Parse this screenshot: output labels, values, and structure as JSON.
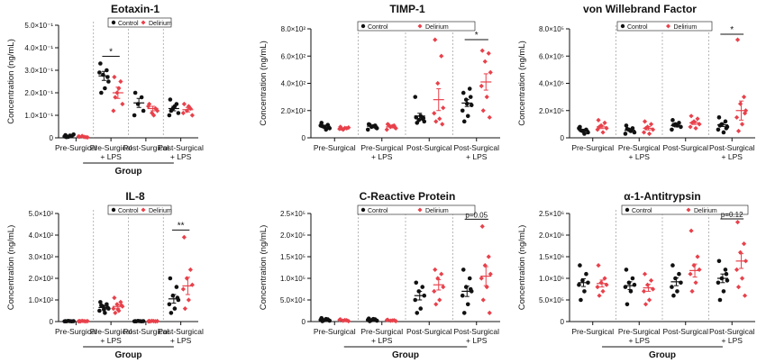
{
  "colors": {
    "control": "#111111",
    "delirium": "#e8414b",
    "grid": "#9a9a9a"
  },
  "chart_data": [
    {
      "type": "scatter",
      "title": "Eotaxin-1",
      "ylabel": "Concentration (ng/mL)",
      "xlabel": "Group",
      "ylim": [
        0,
        0.5
      ],
      "yticks": [
        0,
        0.1,
        0.2,
        0.3,
        0.4,
        0.5
      ],
      "ytick_labels": [
        "0",
        "1.0×10⁻¹",
        "2.0×10⁻¹",
        "3.0×10⁻¹",
        "4.0×10⁻¹",
        "5.0×10⁻¹"
      ],
      "categories": [
        "Pre-Surgical",
        "Pre-Surgical\n+ LPS",
        "Post-Surgical",
        "Post-Surgical\n+ LPS"
      ],
      "legend": [
        "Control",
        "Delirium"
      ],
      "legend_position": "top-right",
      "series": [
        {
          "name": "Control",
          "points": [
            [
              0.012,
              0.008,
              0.004,
              0.015,
              0.006,
              0.01,
              0.003
            ],
            [
              0.33,
              0.3,
              0.28,
              0.25,
              0.29,
              0.22,
              0.2,
              0.27
            ],
            [
              0.2,
              0.18,
              0.15,
              0.12,
              0.1
            ],
            [
              0.17,
              0.15,
              0.13,
              0.11,
              0.1,
              0.14,
              0.12
            ]
          ],
          "mean": [
            0.008,
            0.275,
            0.155,
            0.13
          ],
          "sem": [
            0.003,
            0.02,
            0.02,
            0.01
          ]
        },
        {
          "name": "Delirium",
          "points": [
            [
              0.005,
              0.003,
              0.008,
              0.002,
              0.006,
              0.004
            ],
            [
              0.27,
              0.25,
              0.2,
              0.15,
              0.12,
              0.22,
              0.18
            ],
            [
              0.15,
              0.13,
              0.11,
              0.12,
              0.14,
              0.1
            ],
            [
              0.15,
              0.13,
              0.12,
              0.1,
              0.11,
              0.14
            ]
          ],
          "mean": [
            0.005,
            0.2,
            0.13,
            0.125
          ],
          "sem": [
            0.002,
            0.025,
            0.01,
            0.01
          ]
        }
      ],
      "annotations": [
        {
          "group": 1,
          "text": "*"
        }
      ]
    },
    {
      "type": "scatter",
      "title": "TIMP-1",
      "ylabel": "Concentration (ng/mL)",
      "xlabel": "",
      "ylim": [
        0,
        800
      ],
      "yticks": [
        0,
        200,
        400,
        600,
        800
      ],
      "ytick_labels": [
        "0",
        "2.0×10²",
        "4.0×10²",
        "6.0×10²",
        "8.0×10²"
      ],
      "categories": [
        "Pre-Surgical",
        "Pre-Surgical\n+ LPS",
        "Post-Surgical",
        "Post-Surgical\n+ LPS"
      ],
      "legend": [
        "Control",
        "Delirium"
      ],
      "legend_position": "top-right",
      "series": [
        {
          "name": "Control",
          "points": [
            [
              110,
              95,
              80,
              70,
              90,
              60,
              85,
              75
            ],
            [
              100,
              90,
              80,
              70,
              60,
              85,
              95,
              75
            ],
            [
              150,
              140,
              130,
              120,
              300,
              160,
              110,
              145
            ],
            [
              330,
              360,
              280,
              240,
              200,
              160,
              120,
              300,
              250
            ]
          ],
          "mean": [
            85,
            85,
            160,
            255
          ],
          "sem": [
            8,
            6,
            20,
            25
          ]
        },
        {
          "name": "Delirium",
          "points": [
            [
              80,
              70,
              60,
              75,
              65,
              72,
              68
            ],
            [
              100,
              90,
              80,
              70,
              60,
              85,
              95,
              75
            ],
            [
              720,
              600,
              400,
              220,
              180,
              140,
              120,
              100
            ],
            [
              640,
              620,
              560,
              480,
              380,
              300,
              200,
              150
            ]
          ],
          "mean": [
            70,
            80,
            280,
            410
          ],
          "sem": [
            4,
            6,
            80,
            60
          ]
        }
      ],
      "annotations": [
        {
          "group": 3,
          "text": "*"
        }
      ]
    },
    {
      "type": "scatter",
      "title": "von Willebrand Factor",
      "ylabel": "Concentration (ng/mL)",
      "xlabel": "",
      "ylim": [
        0,
        800000
      ],
      "yticks": [
        0,
        200000,
        400000,
        600000,
        800000
      ],
      "ytick_labels": [
        "0",
        "2.0×10⁵",
        "4.0×10⁵",
        "6.0×10⁵",
        "8.0×10⁵"
      ],
      "categories": [
        "Pre-Surgical",
        "Pre-Surgical\n+ LPS",
        "Post-Surgical",
        "Post-Surgical\n+ LPS"
      ],
      "legend": [
        "Control",
        "Delirium"
      ],
      "legend_position": "top-right",
      "series": [
        {
          "name": "Control",
          "points": [
            [
              80000,
              60000,
              50000,
              40000,
              70000,
              30000,
              55000
            ],
            [
              90000,
              70000,
              60000,
              40000,
              30000,
              50000,
              65000
            ],
            [
              130000,
              110000,
              100000,
              80000,
              60000,
              90000,
              95000
            ],
            [
              150000,
              120000,
              100000,
              80000,
              60000,
              40000,
              90000,
              70000
            ]
          ],
          "mean": [
            55000,
            55000,
            90000,
            95000
          ],
          "sem": [
            8000,
            8000,
            10000,
            12000
          ]
        },
        {
          "name": "Delirium",
          "points": [
            [
              130000,
              110000,
              90000,
              70000,
              60000,
              40000,
              80000
            ],
            [
              120000,
              100000,
              80000,
              60000,
              40000,
              30000,
              70000
            ],
            [
              160000,
              140000,
              120000,
              100000,
              80000,
              70000,
              110000
            ],
            [
              720000,
              300000,
              250000,
              200000,
              150000,
              100000,
              50000,
              180000
            ]
          ],
          "mean": [
            80000,
            70000,
            110000,
            200000
          ],
          "sem": [
            12000,
            12000,
            12000,
            70000
          ]
        }
      ],
      "annotations": [
        {
          "group": 3,
          "text": "*"
        }
      ]
    },
    {
      "type": "scatter",
      "title": "IL-8",
      "ylabel": "Concentration (ng/mL)",
      "xlabel": "Group",
      "ylim": [
        0,
        500
      ],
      "yticks": [
        0,
        100,
        200,
        300,
        400,
        500
      ],
      "ytick_labels": [
        "0",
        "1.0×10²",
        "2.0×10²",
        "3.0×10²",
        "4.0×10²",
        "5.0×10²"
      ],
      "categories": [
        "Pre-Surgical",
        "Pre-Surgical\n+ LPS",
        "Post-Surgical",
        "Post-Surgical\n+ LPS"
      ],
      "legend": [
        "Control",
        "Delirium"
      ],
      "legend_position": "top-right",
      "series": [
        {
          "name": "Control",
          "points": [
            [
              2,
              1,
              3,
              2,
              1,
              2,
              1
            ],
            [
              90,
              80,
              70,
              60,
              50,
              40,
              75,
              65,
              55
            ],
            [
              2,
              1,
              3,
              2,
              1,
              2,
              1
            ],
            [
              200,
              160,
              120,
              100,
              80,
              60,
              40,
              110
            ]
          ],
          "mean": [
            2,
            65,
            2,
            105
          ],
          "sem": [
            0.5,
            7,
            0.5,
            20
          ]
        },
        {
          "name": "Delirium",
          "points": [
            [
              2,
              1,
              3,
              2,
              1,
              2,
              1
            ],
            [
              110,
              90,
              80,
              70,
              60,
              50,
              40,
              75,
              55
            ],
            [
              2,
              1,
              3,
              2,
              1,
              2,
              1
            ],
            [
              390,
              240,
              200,
              170,
              150,
              100,
              60
            ]
          ],
          "mean": [
            2,
            70,
            2,
            165
          ],
          "sem": [
            0.5,
            8,
            0.5,
            40
          ]
        }
      ],
      "annotations": [
        {
          "group": 3,
          "text": "**"
        }
      ]
    },
    {
      "type": "scatter",
      "title": "C-Reactive Protein",
      "ylabel": "Concentration (ng/mL)",
      "xlabel": "Group",
      "ylim": [
        0,
        250000
      ],
      "yticks": [
        0,
        50000,
        100000,
        150000,
        200000,
        250000
      ],
      "ytick_labels": [
        "0",
        "5.0×10⁴",
        "1.0×10⁵",
        "1.5×10⁵",
        "2.0×10⁵",
        "2.5×10⁵"
      ],
      "categories": [
        "Pre-Surgical",
        "Pre-Surgical\n+ LPS",
        "Post-Surgical",
        "Post-Surgical\n+ LPS"
      ],
      "legend": [
        "Control",
        "Delirium"
      ],
      "legend_position": "top-right",
      "series": [
        {
          "name": "Control",
          "points": [
            [
              8000,
              5000,
              3000,
              2000,
              4000,
              6000,
              1000
            ],
            [
              7000,
              5000,
              3000,
              2000,
              4000,
              6000,
              1000
            ],
            [
              90000,
              80000,
              70000,
              60000,
              50000,
              30000,
              20000
            ],
            [
              120000,
              100000,
              80000,
              70000,
              60000,
              40000,
              20000,
              75000
            ]
          ],
          "mean": [
            4000,
            4000,
            60000,
            70000
          ],
          "sem": [
            1000,
            1000,
            10000,
            12000
          ]
        },
        {
          "name": "Delirium",
          "points": [
            [
              5000,
              3000,
              2000,
              1000,
              4000,
              3500
            ],
            [
              4000,
              3000,
              2000,
              1000,
              3500,
              2500
            ],
            [
              120000,
              110000,
              100000,
              80000,
              70000,
              50000,
              40000
            ],
            [
              220000,
              150000,
              130000,
              110000,
              100000,
              80000,
              50000,
              20000
            ]
          ],
          "mean": [
            3000,
            2500,
            85000,
            105000
          ],
          "sem": [
            600,
            500,
            12000,
            22000
          ]
        }
      ],
      "annotations": [
        {
          "group": 3,
          "text": "p=0.05"
        }
      ]
    },
    {
      "type": "scatter",
      "title": "α-1-Antitrypsin",
      "ylabel": "Concentration (ng/mL)",
      "xlabel": "Group",
      "ylim": [
        0,
        2500000
      ],
      "yticks": [
        0,
        500000,
        1000000,
        1500000,
        2000000,
        2500000
      ],
      "ytick_labels": [
        "0",
        "5.0×10⁵",
        "1.0×10⁶",
        "1.5×10⁶",
        "2.0×10⁶",
        "2.5×10⁶"
      ],
      "categories": [
        "Pre-Surgical",
        "Pre-Surgical\n+ LPS",
        "Post-Surgical",
        "Post-Surgical\n+ LPS"
      ],
      "legend": [
        "Control",
        "Delirium"
      ],
      "legend_position": "top-right",
      "series": [
        {
          "name": "Control",
          "points": [
            [
              1300000,
              1100000,
              950000,
              900000,
              850000,
              700000,
              500000
            ],
            [
              1200000,
              1000000,
              900000,
              850000,
              800000,
              700000,
              400000
            ],
            [
              1300000,
              1100000,
              1000000,
              900000,
              800000,
              700000,
              600000
            ],
            [
              1400000,
              1200000,
              1000000,
              950000,
              900000,
              700000,
              500000,
              1100000
            ]
          ],
          "mean": [
            900000,
            830000,
            920000,
            1000000
          ],
          "sem": [
            90000,
            90000,
            90000,
            100000
          ]
        },
        {
          "name": "Delirium",
          "points": [
            [
              1300000,
              1000000,
              900000,
              850000,
              800000,
              700000,
              600000
            ],
            [
              1100000,
              950000,
              850000,
              750000,
              700000,
              500000,
              400000
            ],
            [
              2100000,
              1500000,
              1300000,
              1200000,
              1100000,
              900000,
              700000
            ],
            [
              2300000,
              1800000,
              1600000,
              1400000,
              1200000,
              1000000,
              800000,
              600000
            ]
          ],
          "mean": [
            880000,
            780000,
            1180000,
            1400000
          ],
          "sem": [
            80000,
            80000,
            150000,
            170000
          ]
        }
      ],
      "annotations": [
        {
          "group": 3,
          "text": "p=0.12"
        }
      ]
    }
  ]
}
